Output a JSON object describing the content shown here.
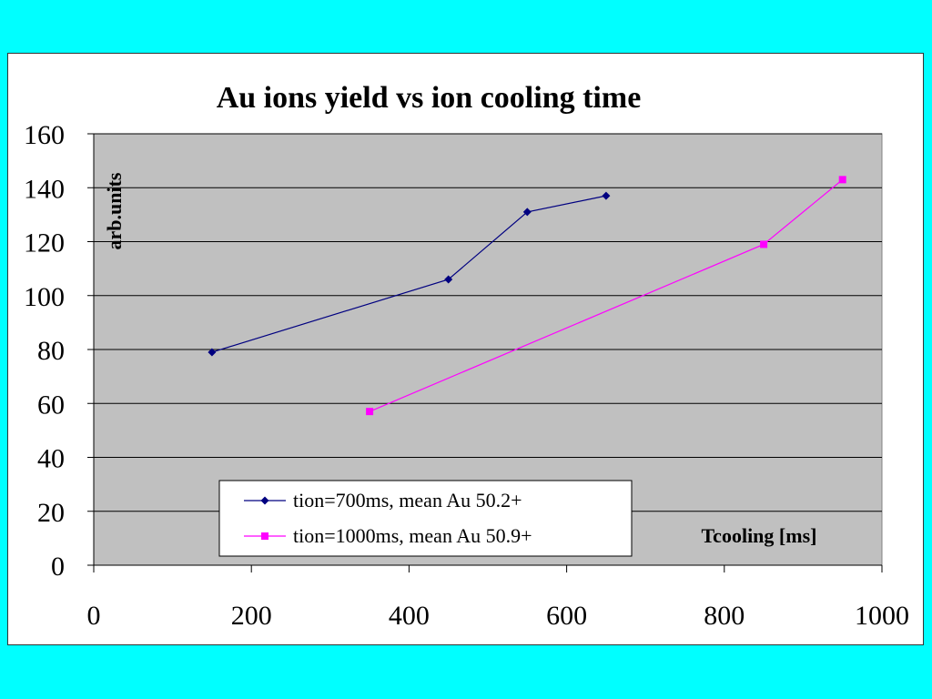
{
  "background_color": "#00FFFF",
  "chart_data": {
    "type": "line",
    "title": "Au ions yield vs ion cooling time",
    "xlabel": "Tcooling [ms]",
    "ylabel": "arb.units",
    "xlim": [
      0,
      1000
    ],
    "ylim": [
      0,
      160
    ],
    "x_ticks": [
      0,
      200,
      400,
      600,
      800,
      1000
    ],
    "y_ticks": [
      0,
      20,
      40,
      60,
      80,
      100,
      120,
      140,
      160
    ],
    "grid": "horizontal",
    "plot_background": "#C0C0C0",
    "legend_placement": "bottom-center",
    "series": [
      {
        "name": "tion=700ms, mean Au 50.2+",
        "color": "#000080",
        "marker": "diamond",
        "x": [
          150,
          450,
          550,
          650
        ],
        "y": [
          79,
          106,
          131,
          137
        ]
      },
      {
        "name": "tion=1000ms, mean Au 50.9+",
        "color": "#FF00FF",
        "marker": "square",
        "x": [
          350,
          850,
          950
        ],
        "y": [
          57,
          119,
          143
        ]
      }
    ]
  }
}
